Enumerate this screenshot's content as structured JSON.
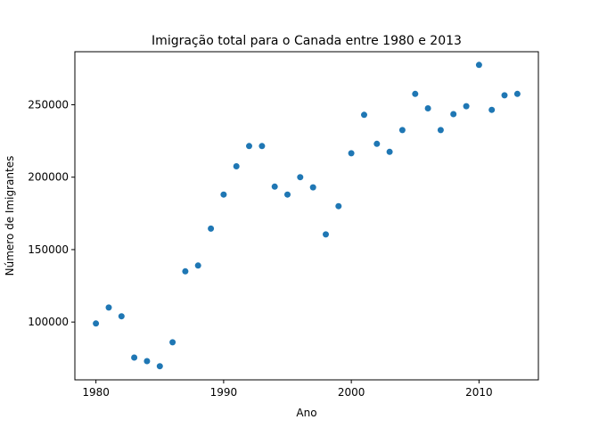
{
  "chart_data": {
    "type": "scatter",
    "title": "Imigração total para o Canada entre 1980 e 2013",
    "xlabel": "Ano",
    "ylabel": "Número de Imigrantes",
    "xlim": [
      1978.35,
      2014.65
    ],
    "ylim": [
      60100,
      286600
    ],
    "xticks": [
      1980,
      1990,
      2000,
      2010
    ],
    "xtick_labels": [
      "1980",
      "1990",
      "2000",
      "2010"
    ],
    "yticks": [
      100000,
      150000,
      200000,
      250000
    ],
    "ytick_labels": [
      "100000",
      "150000",
      "200000",
      "250000"
    ],
    "grid": false,
    "color": "#1f77b4",
    "x": [
      1980,
      1981,
      1982,
      1983,
      1984,
      1985,
      1986,
      1987,
      1988,
      1989,
      1990,
      1991,
      1992,
      1993,
      1994,
      1995,
      1996,
      1997,
      1998,
      1999,
      2000,
      2001,
      2002,
      2003,
      2004,
      2005,
      2006,
      2007,
      2008,
      2009,
      2010,
      2011,
      2012,
      2013
    ],
    "y": [
      99000,
      110000,
      104000,
      75500,
      73000,
      69500,
      86000,
      135000,
      139000,
      164500,
      188000,
      207500,
      221500,
      221500,
      193500,
      188000,
      200000,
      193000,
      160500,
      180000,
      216500,
      243000,
      223000,
      217500,
      232500,
      257500,
      247500,
      232500,
      243500,
      249000,
      277500,
      246500,
      256500,
      257500
    ]
  }
}
